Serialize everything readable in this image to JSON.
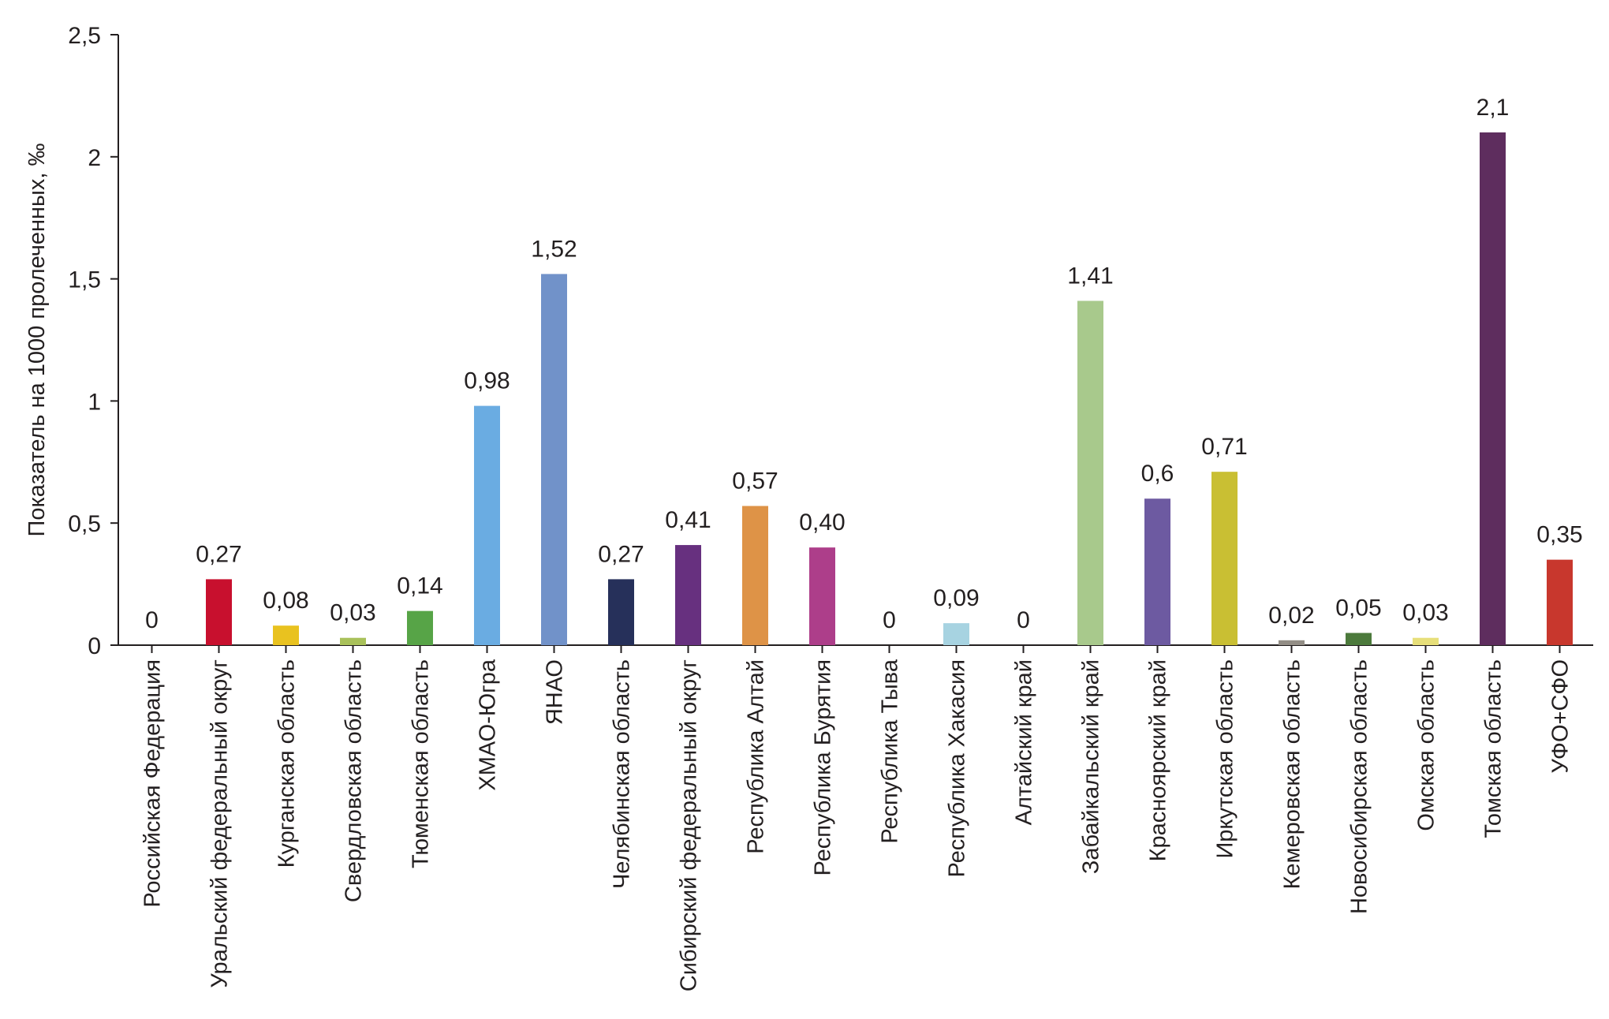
{
  "chart_data": {
    "type": "bar",
    "title": "",
    "xlabel": "",
    "ylabel": "Показатель на 1000 пролеченных, ‰",
    "ylim": [
      0,
      2.5
    ],
    "yticks": [
      "0",
      "0,5",
      "1",
      "1,5",
      "2",
      "2,5"
    ],
    "grid": false,
    "legend": "none",
    "categories": [
      "Российская Федерация",
      "Уральский федеральный округ",
      "Курганская область",
      "Свердловская область",
      "Тюменская область",
      "ХМАО-Югра",
      "ЯНАО",
      "Челябинская область",
      "Сибирский федеральный округ",
      "Республика Алтай",
      "Республика Бурятия",
      "Республика Тыва",
      "Республика Хакасия",
      "Алтайский край",
      "Забайкальский край",
      "Красноярский край",
      "Иркутская область",
      "Кемеровская область",
      "Новосибирская область",
      "Омская область",
      "Томская область",
      "УФО+СФО"
    ],
    "values": [
      0,
      0.27,
      0.08,
      0.03,
      0.14,
      0.98,
      1.52,
      0.27,
      0.41,
      0.57,
      0.4,
      0,
      0.09,
      0,
      1.41,
      0.6,
      0.71,
      0.02,
      0.05,
      0.03,
      2.1,
      0.35
    ],
    "value_labels": [
      "0",
      "0,27",
      "0,08",
      "0,03",
      "0,14",
      "0,98",
      "1,52",
      "0,27",
      "0,41",
      "0,57",
      "0,40",
      "0",
      "0,09",
      "0",
      "1,41",
      "0,6",
      "0,71",
      "0,02",
      "0,05",
      "0,03",
      "2,1",
      "0,35"
    ],
    "colors": [
      "#ffffff",
      "#c8102e",
      "#e9c21f",
      "#a9c15a",
      "#57a447",
      "#6aace2",
      "#7192c9",
      "#26305a",
      "#67307f",
      "#de9347",
      "#ad3e8a",
      "#ffffff",
      "#a7d3e1",
      "#ffffff",
      "#a8c98c",
      "#6d5aa1",
      "#c9bf33",
      "#938e86",
      "#4c7a3c",
      "#e7df7a",
      "#5e2d5e",
      "#c8372d"
    ]
  }
}
